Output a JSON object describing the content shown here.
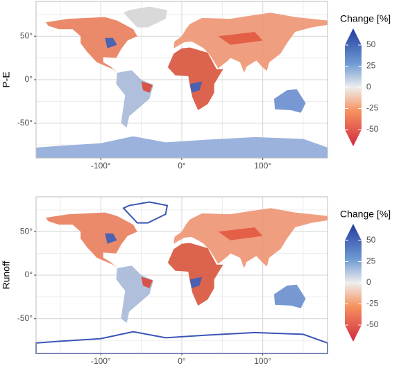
{
  "chart_data": [
    {
      "type": "map",
      "ylabel": "P-E",
      "xlim": [
        -180,
        180
      ],
      "ylim": [
        -90,
        90
      ],
      "xticks": [
        {
          "value": -100,
          "label": "-100°"
        },
        {
          "value": 0,
          "label": "0°"
        },
        {
          "value": 100,
          "label": "100°"
        }
      ],
      "yticks": [
        {
          "value": -50,
          "label": "-50°"
        },
        {
          "value": 0,
          "label": "0°"
        },
        {
          "value": 50,
          "label": "50°"
        }
      ],
      "grid": true,
      "colorbar": {
        "title": "Change [%]",
        "lim": [
          -50,
          50
        ],
        "ticks": [
          50,
          25,
          0,
          -25,
          -50
        ]
      }
    },
    {
      "type": "map",
      "ylabel": "Runoff",
      "xlim": [
        -180,
        180
      ],
      "ylim": [
        -90,
        90
      ],
      "xticks": [
        {
          "value": -100,
          "label": "-100°"
        },
        {
          "value": 0,
          "label": "0°"
        },
        {
          "value": 100,
          "label": "100°"
        }
      ],
      "yticks": [
        {
          "value": -50,
          "label": "-50°"
        },
        {
          "value": 0,
          "label": "0°"
        },
        {
          "value": 50,
          "label": "50°"
        }
      ],
      "grid": true,
      "colorbar": {
        "title": "Change [%]",
        "lim": [
          -50,
          50
        ],
        "ticks": [
          50,
          25,
          0,
          -25,
          -50
        ]
      }
    }
  ]
}
